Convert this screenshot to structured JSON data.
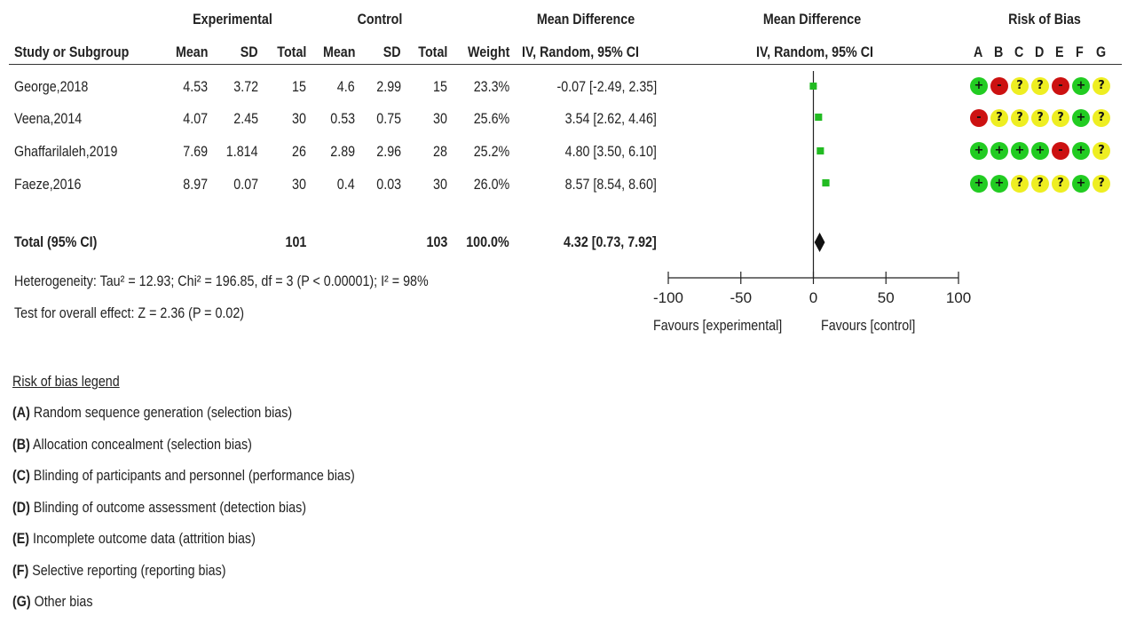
{
  "chart_data": {
    "type": "forest",
    "headers": {
      "study": "Study or Subgroup",
      "exp_group": "Experimental",
      "ctrl_group": "Control",
      "mean": "Mean",
      "sd": "SD",
      "total": "Total",
      "weight": "Weight",
      "md_title": "Mean Difference",
      "md_method": "IV, Random, 95% CI",
      "plot_title": "Mean Difference",
      "plot_method": "IV, Random, 95% CI",
      "rob_title": "Risk of Bias",
      "rob_letters": [
        "A",
        "B",
        "C",
        "D",
        "E",
        "F",
        "G"
      ]
    },
    "studies": [
      {
        "name": "George,2018",
        "exp_mean": "4.53",
        "exp_sd": "3.72",
        "exp_total": "15",
        "ctrl_mean": "4.6",
        "ctrl_sd": "2.99",
        "ctrl_total": "15",
        "weight": "23.3%",
        "md_text": "-0.07 [-2.49, 2.35]",
        "md": -0.07,
        "ci_low": -2.49,
        "ci_high": 2.35,
        "w": 23.3,
        "rob": [
          "+",
          "-",
          "?",
          "?",
          "-",
          "+",
          "?"
        ]
      },
      {
        "name": "Veena,2014",
        "exp_mean": "4.07",
        "exp_sd": "2.45",
        "exp_total": "30",
        "ctrl_mean": "0.53",
        "ctrl_sd": "0.75",
        "ctrl_total": "30",
        "weight": "25.6%",
        "md_text": "3.54 [2.62, 4.46]",
        "md": 3.54,
        "ci_low": 2.62,
        "ci_high": 4.46,
        "w": 25.6,
        "rob": [
          "-",
          "?",
          "?",
          "?",
          "?",
          "+",
          "?"
        ]
      },
      {
        "name": "Ghaffarilaleh,2019",
        "exp_mean": "7.69",
        "exp_sd": "1.814",
        "exp_total": "26",
        "ctrl_mean": "2.89",
        "ctrl_sd": "2.96",
        "ctrl_total": "28",
        "weight": "25.2%",
        "md_text": "4.80 [3.50, 6.10]",
        "md": 4.8,
        "ci_low": 3.5,
        "ci_high": 6.1,
        "w": 25.2,
        "rob": [
          "+",
          "+",
          "+",
          "+",
          "-",
          "+",
          "?"
        ]
      },
      {
        "name": "Faeze,2016",
        "exp_mean": "8.97",
        "exp_sd": "0.07",
        "exp_total": "30",
        "ctrl_mean": "0.4",
        "ctrl_sd": "0.03",
        "ctrl_total": "30",
        "weight": "26.0%",
        "md_text": "8.57 [8.54, 8.60]",
        "md": 8.57,
        "ci_low": 8.54,
        "ci_high": 8.6,
        "w": 26.0,
        "rob": [
          "+",
          "+",
          "?",
          "?",
          "?",
          "+",
          "?"
        ]
      }
    ],
    "total": {
      "label": "Total (95% CI)",
      "exp_total": "101",
      "ctrl_total": "103",
      "weight": "100.0%",
      "md_text": "4.32 [0.73, 7.92]",
      "md": 4.32,
      "ci_low": 0.73,
      "ci_high": 7.92
    },
    "heterogeneity": "Heterogeneity: Tau² = 12.93; Chi² = 196.85, df = 3 (P < 0.00001); I² = 98%",
    "overall_effect": "Test for overall effect: Z = 2.36 (P = 0.02)",
    "axis": {
      "xlim": [
        -100,
        100
      ],
      "ticks": [
        -100,
        -50,
        0,
        50,
        100
      ],
      "tick_labels": [
        "-100",
        "-50",
        "0",
        "50",
        "100"
      ],
      "favours_left": "Favours [experimental]",
      "favours_right": "Favours [control]"
    },
    "colors": {
      "square": "#22bb22",
      "diamond": "#111111",
      "low": "#22cc22",
      "high": "#cc1111",
      "unclear": "#eeee22"
    }
  },
  "legend": {
    "title": "Risk of bias legend",
    "items": [
      {
        "key": "(A)",
        "text": " Random sequence generation (selection bias)"
      },
      {
        "key": "(B)",
        "text": " Allocation concealment (selection bias)"
      },
      {
        "key": "(C)",
        "text": " Blinding of participants and personnel (performance bias)"
      },
      {
        "key": "(D)",
        "text": " Blinding of outcome assessment (detection bias)"
      },
      {
        "key": "(E)",
        "text": " Incomplete outcome data (attrition bias)"
      },
      {
        "key": "(F)",
        "text": " Selective reporting (reporting bias)"
      },
      {
        "key": "(G)",
        "text": " Other bias"
      }
    ]
  }
}
